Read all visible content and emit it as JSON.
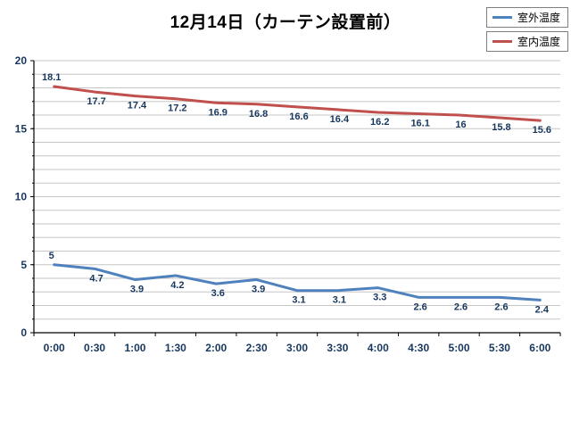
{
  "chart_data": {
    "type": "line",
    "title": "12月14日（カーテン設置前）",
    "categories": [
      "0:00",
      "0:30",
      "1:00",
      "1:30",
      "2:00",
      "2:30",
      "3:00",
      "3:30",
      "4:00",
      "4:30",
      "5:00",
      "5:30",
      "6:00"
    ],
    "series": [
      {
        "name": "室外温度",
        "color": "#4F81BD",
        "values": [
          5,
          4.7,
          3.9,
          4.2,
          3.6,
          3.9,
          3.1,
          3.1,
          3.3,
          2.6,
          2.6,
          2.6,
          2.4
        ]
      },
      {
        "name": "室内温度",
        "color": "#C0504D",
        "values": [
          18.1,
          17.7,
          17.4,
          17.2,
          16.9,
          16.8,
          16.6,
          16.4,
          16.2,
          16.1,
          16,
          15.8,
          15.6
        ]
      }
    ],
    "xlabel": "",
    "ylabel": "",
    "ylim": [
      0,
      20
    ],
    "ytick_step": 5,
    "grid_step": 1,
    "grid": true,
    "legend_position": "top-right",
    "gridline_color": "#c6c6c6",
    "axis_color": "#000000",
    "label_color": "#17375E"
  }
}
